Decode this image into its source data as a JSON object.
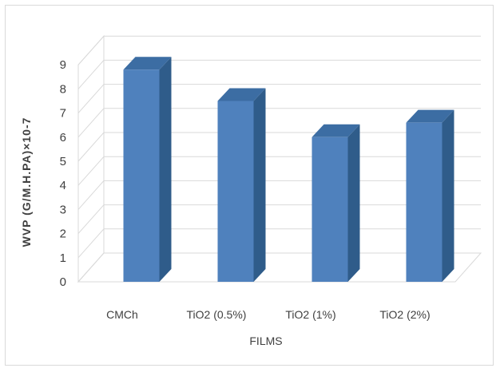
{
  "chart_data": {
    "type": "bar",
    "title": "",
    "xlabel": "FILMS",
    "ylabel": "WVP (G/M.H.PA)×10-7",
    "categories": [
      "CMCh",
      "TiO2 (0.5%)",
      "TiO2 (1%)",
      "TiO2 (2%)"
    ],
    "series": [
      {
        "values": [
          8.8,
          7.5,
          6.0,
          6.6
        ]
      }
    ],
    "ylim": [
      0,
      9
    ],
    "yticks": [
      "0",
      "1",
      "2",
      "3",
      "4",
      "5",
      "6",
      "7",
      "8",
      "9"
    ],
    "grid": true,
    "legend": "none",
    "style": "3d-column",
    "colors": {
      "bar_front": "#4f81bd",
      "bar_side": "#2f5c8a",
      "bar_top": "#3c6da3",
      "grid": "#d9d9d9"
    }
  }
}
